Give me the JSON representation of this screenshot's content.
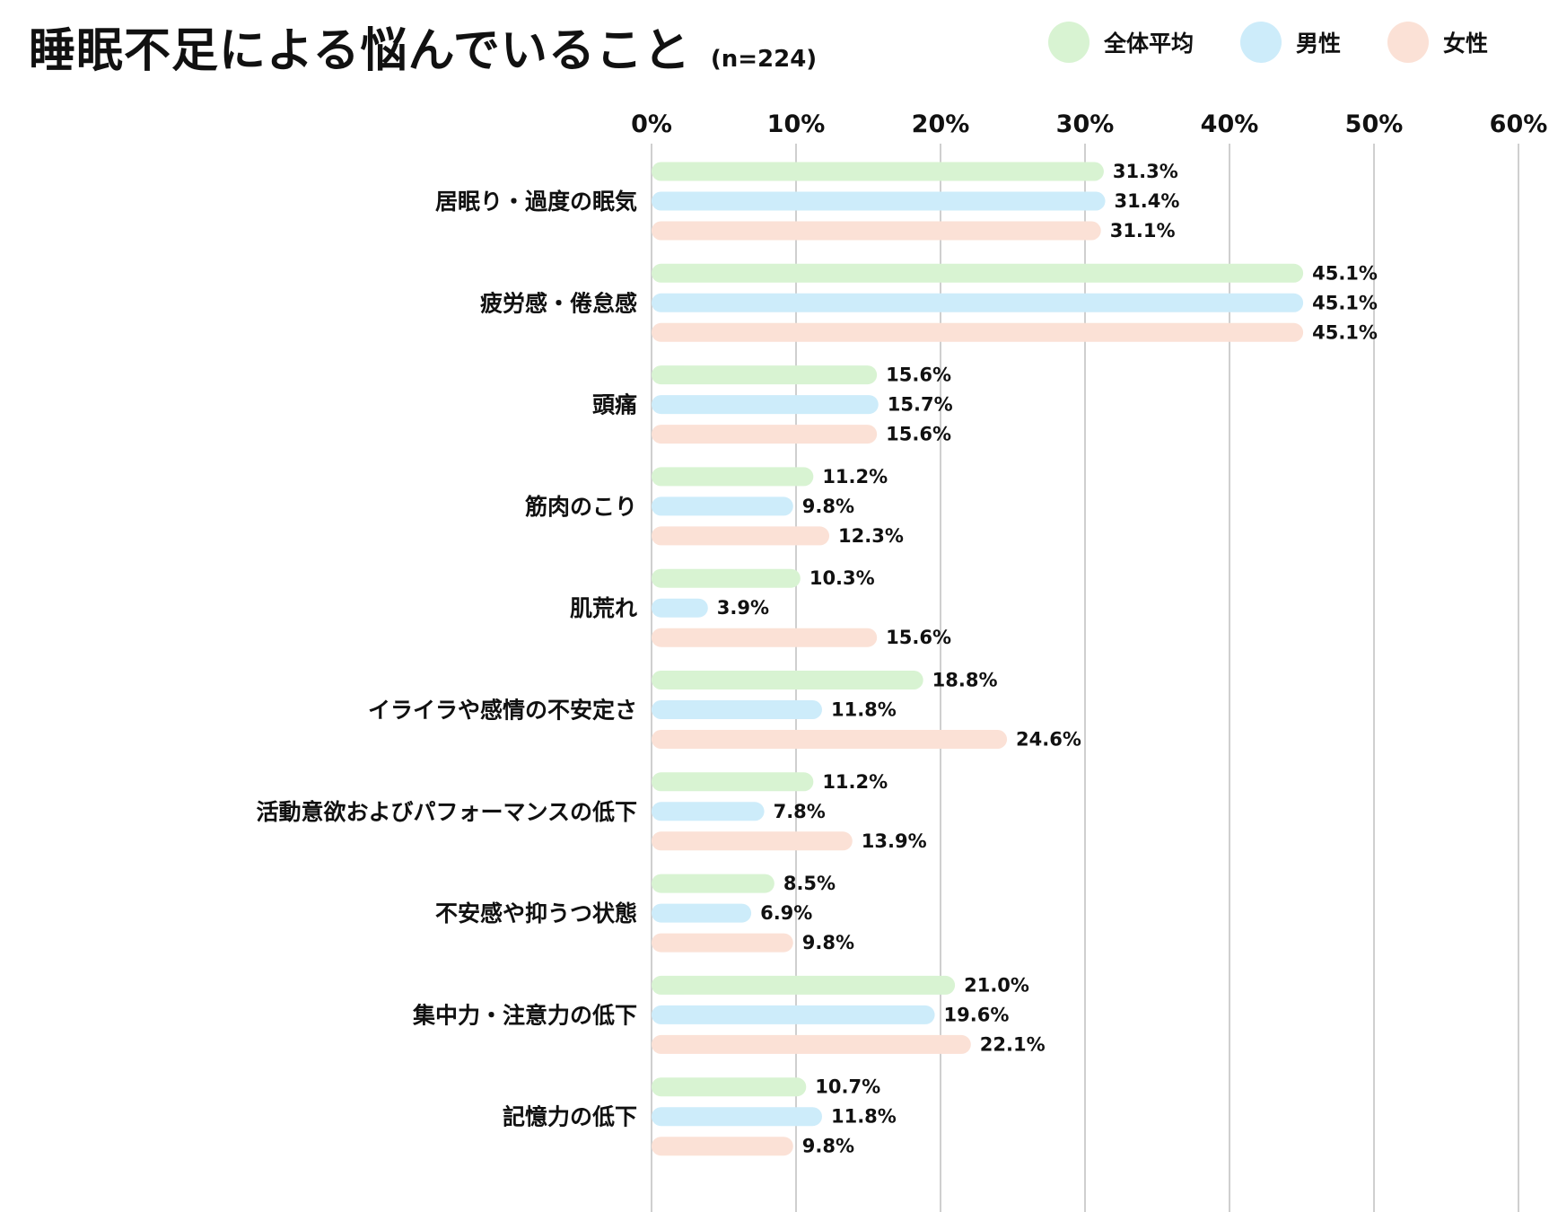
{
  "title": "睡眠不足による悩んでいること",
  "subtitle": "(n=224)",
  "colors": {
    "overall": "#d8f3d2",
    "male": "#cdecfa",
    "female": "#fbe1d6",
    "grid": "#cfcfcf"
  },
  "chart_data": {
    "type": "bar",
    "orientation": "horizontal",
    "title": "睡眠不足による悩んでいること",
    "subtitle": "(n=224)",
    "xlim": [
      0,
      60
    ],
    "ticks": [
      "0%",
      "10%",
      "20%",
      "30%",
      "40%",
      "50%",
      "60%"
    ],
    "tick_values": [
      0,
      10,
      20,
      30,
      40,
      50,
      60
    ],
    "grid": true,
    "legend_position": "top-right",
    "categories": [
      "居眠り・過度の眠気",
      "疲労感・倦怠感",
      "頭痛",
      "筋肉のこり",
      "肌荒れ",
      "イライラや感情の不安定さ",
      "活動意欲およびパフォーマンスの低下",
      "不安感や抑うつ状態",
      "集中力・注意力の低下",
      "記憶力の低下"
    ],
    "series": [
      {
        "name": "全体平均",
        "color": "#d8f3d2",
        "values": [
          31.3,
          45.1,
          15.6,
          11.2,
          10.3,
          18.8,
          11.2,
          8.5,
          21.0,
          10.7
        ],
        "labels": [
          "31.3%",
          "45.1%",
          "15.6%",
          "11.2%",
          "10.3%",
          "18.8%",
          "11.2%",
          "8.5%",
          "21.0%",
          "10.7%"
        ]
      },
      {
        "name": "男性",
        "color": "#cdecfa",
        "values": [
          31.4,
          45.1,
          15.7,
          9.8,
          3.9,
          11.8,
          7.8,
          6.9,
          19.6,
          11.8
        ],
        "labels": [
          "31.4%",
          "45.1%",
          "15.7%",
          "9.8%",
          "3.9%",
          "11.8%",
          "7.8%",
          "6.9%",
          "19.6%",
          "11.8%"
        ]
      },
      {
        "name": "女性",
        "color": "#fbe1d6",
        "values": [
          31.1,
          45.1,
          15.6,
          12.3,
          15.6,
          24.6,
          13.9,
          9.8,
          22.1,
          9.8
        ],
        "labels": [
          "31.1%",
          "45.1%",
          "15.6%",
          "12.3%",
          "15.6%",
          "24.6%",
          "13.9%",
          "9.8%",
          "22.1%",
          "9.8%"
        ]
      }
    ]
  }
}
